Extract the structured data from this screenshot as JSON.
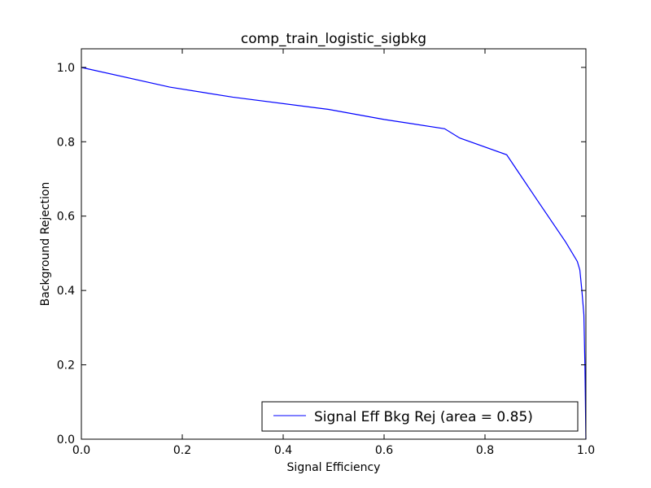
{
  "chart_data": {
    "type": "line",
    "title": "comp_train_logistic_sigbkg",
    "xlabel": "Signal Efficiency",
    "ylabel": "Background Rejection",
    "xlim": [
      0.0,
      1.0
    ],
    "ylim": [
      0.0,
      1.05
    ],
    "xticks": [
      0.0,
      0.2,
      0.4,
      0.6,
      0.8,
      1.0
    ],
    "xtick_labels": [
      "0.0",
      "0.2",
      "0.4",
      "0.6",
      "0.8",
      "1.0"
    ],
    "yticks": [
      0.0,
      0.2,
      0.4,
      0.6,
      0.8,
      1.0
    ],
    "ytick_labels": [
      "0.0",
      "0.2",
      "0.4",
      "0.6",
      "0.8",
      "1.0"
    ],
    "grid": false,
    "legend_position": "bottom-right",
    "series": [
      {
        "name": "Signal Eff Bkg Rej (area = 0.85)",
        "color": "#0000ff",
        "x": [
          0.0,
          0.175,
          0.3,
          0.49,
          0.6,
          0.72,
          0.75,
          0.843,
          0.905,
          0.96,
          0.983,
          0.988,
          0.992,
          0.996,
          0.998,
          0.999,
          1.0
        ],
        "y": [
          1.0,
          0.947,
          0.92,
          0.887,
          0.86,
          0.835,
          0.81,
          0.765,
          0.64,
          0.53,
          0.478,
          0.455,
          0.4,
          0.335,
          0.2,
          0.1,
          0.0
        ]
      }
    ]
  }
}
